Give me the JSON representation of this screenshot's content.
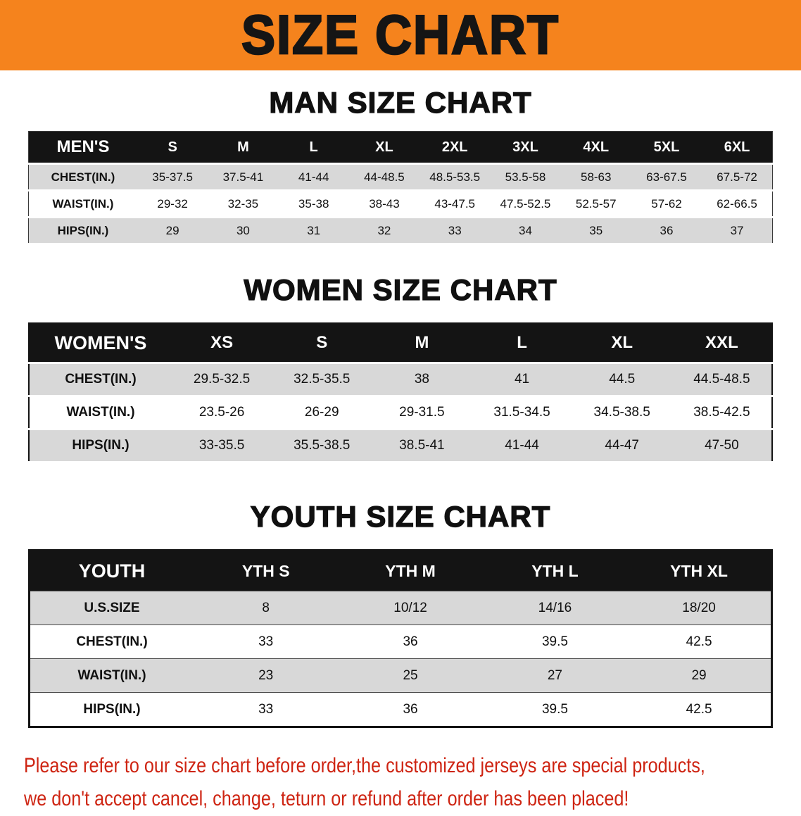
{
  "banner": {
    "title": "SIZE CHART"
  },
  "colors": {
    "banner_orange": "#F5831D",
    "table_header_black": "#141414",
    "row_gray": "#D8D8D8",
    "disclaimer_red": "#CE2412"
  },
  "sections": [
    {
      "id": "men",
      "heading": "MAN SIZE CHART",
      "table": {
        "header_label": "MEN'S",
        "columns": [
          "S",
          "M",
          "L",
          "XL",
          "2XL",
          "3XL",
          "4XL",
          "5XL",
          "6XL"
        ],
        "rows": [
          {
            "label": "CHEST(IN.)",
            "values": [
              "35-37.5",
              "37.5-41",
              "41-44",
              "44-48.5",
              "48.5-53.5",
              "53.5-58",
              "58-63",
              "63-67.5",
              "67.5-72"
            ]
          },
          {
            "label": "WAIST(IN.)",
            "values": [
              "29-32",
              "32-35",
              "35-38",
              "38-43",
              "43-47.5",
              "47.5-52.5",
              "52.5-57",
              "57-62",
              "62-66.5"
            ]
          },
          {
            "label": "HIPS(IN.)",
            "values": [
              "29",
              "30",
              "31",
              "32",
              "33",
              "34",
              "35",
              "36",
              "37"
            ]
          }
        ]
      }
    },
    {
      "id": "women",
      "heading": "WOMEN SIZE CHART",
      "table": {
        "header_label": "WOMEN'S",
        "columns": [
          "XS",
          "S",
          "M",
          "L",
          "XL",
          "XXL"
        ],
        "rows": [
          {
            "label": "CHEST(IN.)",
            "values": [
              "29.5-32.5",
              "32.5-35.5",
              "38",
              "41",
              "44.5",
              "44.5-48.5"
            ]
          },
          {
            "label": "WAIST(IN.)",
            "values": [
              "23.5-26",
              "26-29",
              "29-31.5",
              "31.5-34.5",
              "34.5-38.5",
              "38.5-42.5"
            ]
          },
          {
            "label": "HIPS(IN.)",
            "values": [
              "33-35.5",
              "35.5-38.5",
              "38.5-41",
              "41-44",
              "44-47",
              "47-50"
            ]
          }
        ]
      }
    },
    {
      "id": "youth",
      "heading": "YOUTH SIZE CHART",
      "table": {
        "header_label": "YOUTH",
        "columns": [
          "YTH S",
          "YTH M",
          "YTH L",
          "YTH XL"
        ],
        "rows": [
          {
            "label": "U.S.SIZE",
            "values": [
              "8",
              "10/12",
              "14/16",
              "18/20"
            ]
          },
          {
            "label": "CHEST(IN.)",
            "values": [
              "33",
              "36",
              "39.5",
              "42.5"
            ]
          },
          {
            "label": "WAIST(IN.)",
            "values": [
              "23",
              "25",
              "27",
              "29"
            ]
          },
          {
            "label": "HIPS(IN.)",
            "values": [
              "33",
              "36",
              "39.5",
              "42.5"
            ]
          }
        ]
      }
    }
  ],
  "disclaimer": {
    "line1": "Please refer to our size chart before order,the customized jerseys are special products,",
    "line2": "we don't accept cancel, change, teturn or refund after order has been placed!"
  }
}
